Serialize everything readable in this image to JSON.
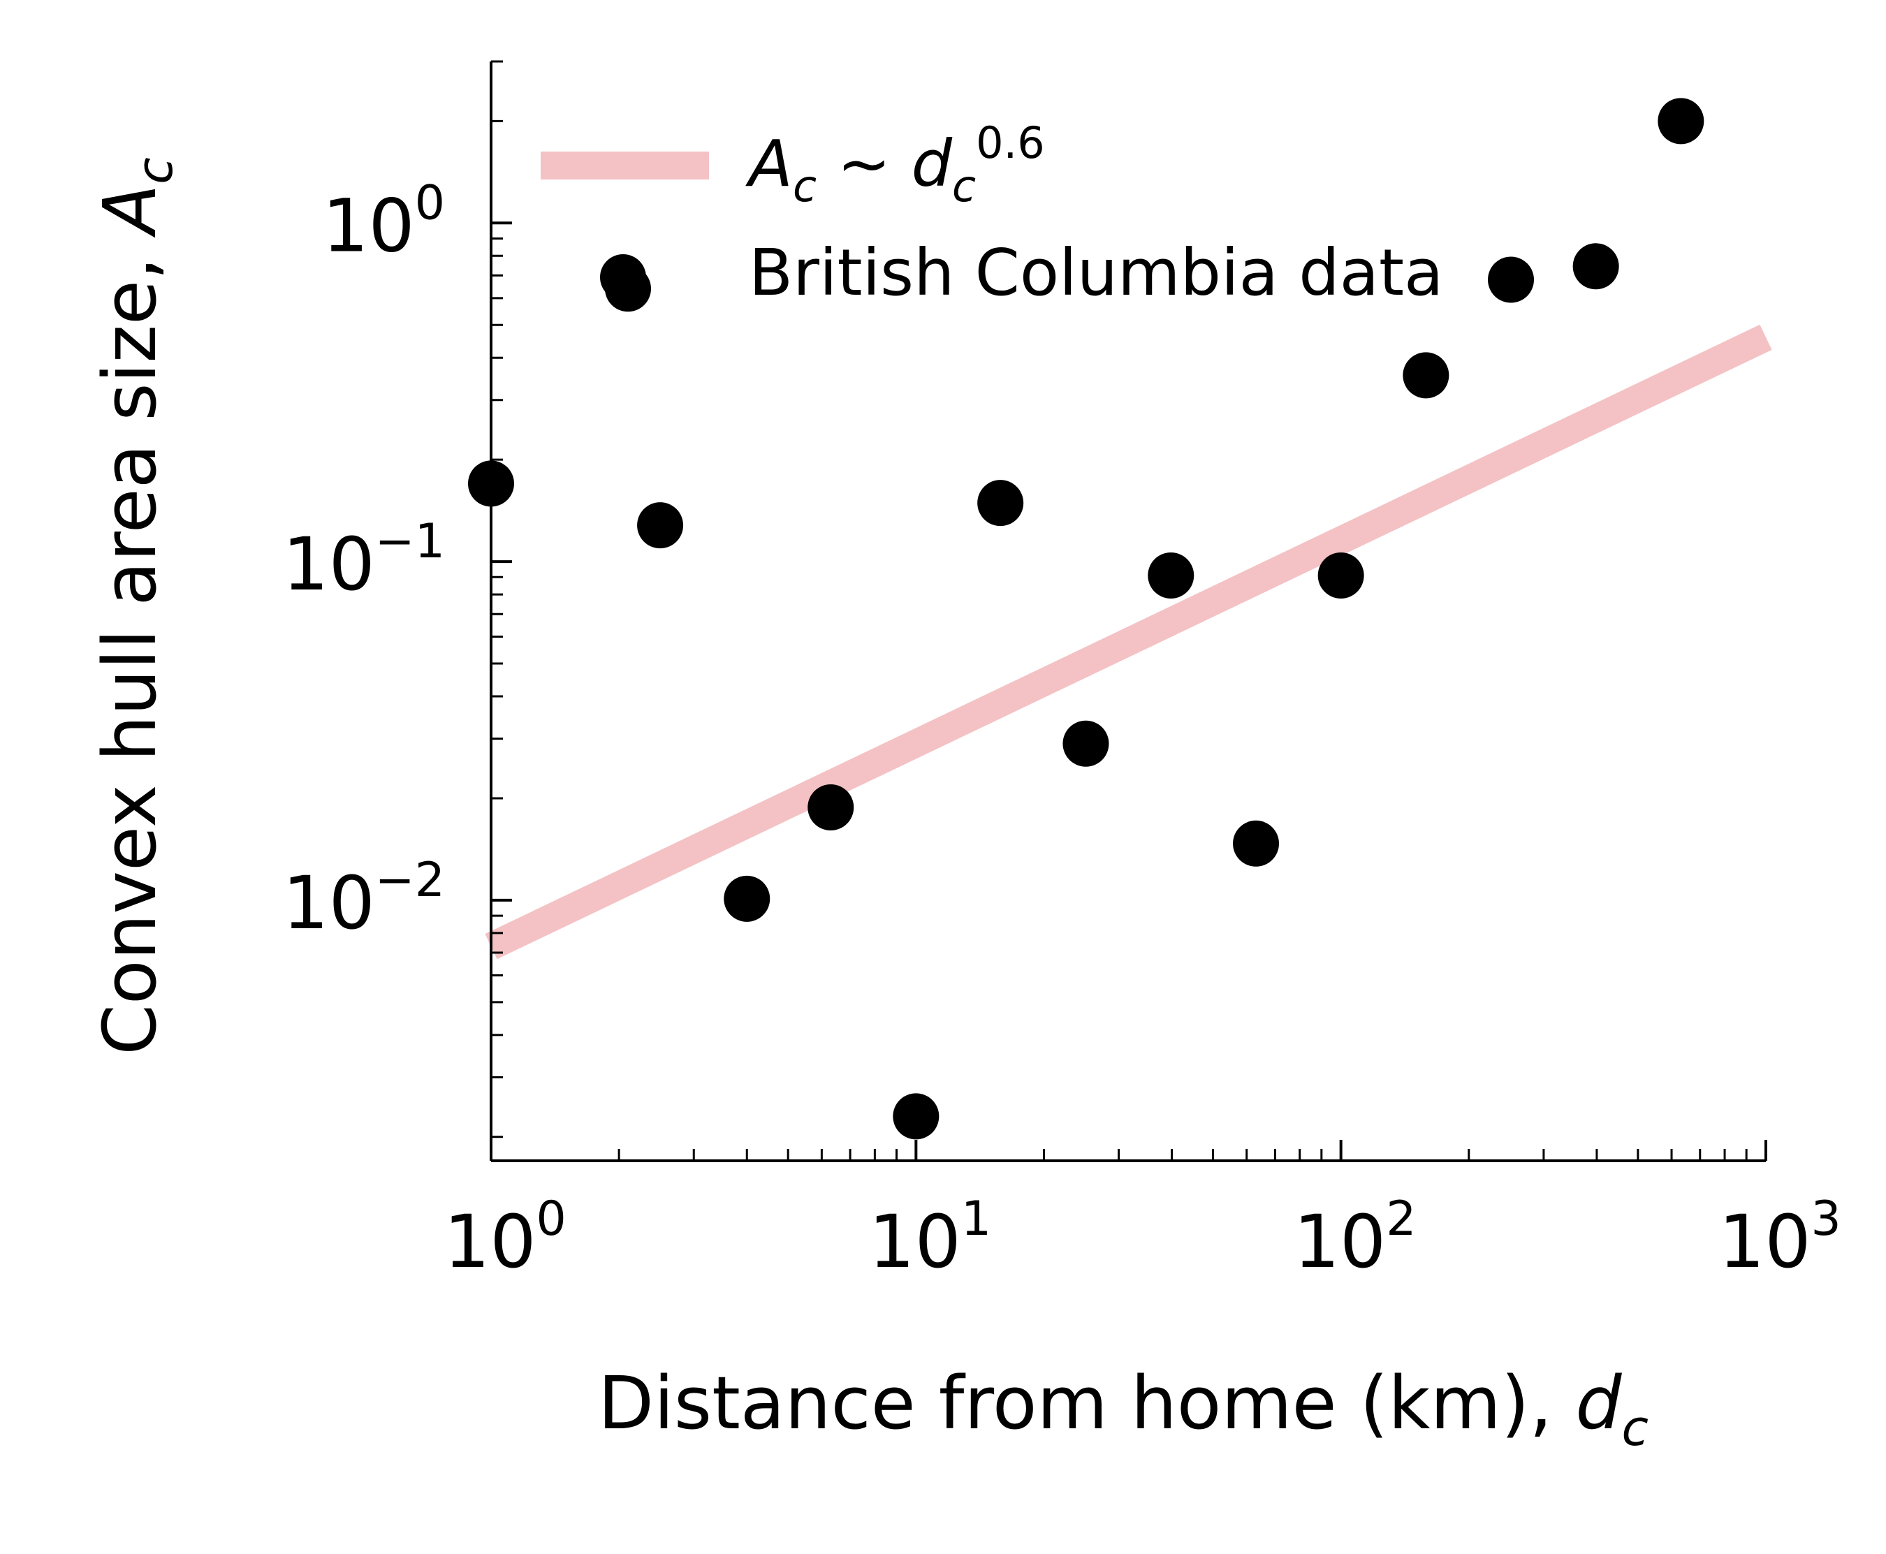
{
  "chart_data": {
    "type": "scatter",
    "xscale": "log",
    "yscale": "log",
    "xlim": [
      1,
      1000
    ],
    "ylim": [
      0.0017,
      3.0
    ],
    "xlabel": "Distance from home (km), ",
    "xlabel_var": "d",
    "xlabel_sub": "c",
    "ylabel": "Convex hull area size, ",
    "ylabel_var": "A",
    "ylabel_sub": "c",
    "x_ticks": [
      {
        "value": 1,
        "base": "10",
        "exp": "0"
      },
      {
        "value": 10,
        "base": "10",
        "exp": "1"
      },
      {
        "value": 100,
        "base": "10",
        "exp": "2"
      },
      {
        "value": 1000,
        "base": "10",
        "exp": "3"
      }
    ],
    "y_ticks": [
      {
        "value": 0.01,
        "base": "10",
        "exp": "−2"
      },
      {
        "value": 0.1,
        "base": "10",
        "exp": "−1"
      },
      {
        "value": 1,
        "base": "10",
        "exp": "0"
      }
    ],
    "series": [
      {
        "name": "British Columbia data",
        "kind": "scatter",
        "color": "#000000",
        "x": [
          1.0,
          2.1,
          2.5,
          4.0,
          6.3,
          10.0,
          15.8,
          25.1,
          39.8,
          63.1,
          100.0,
          158.5,
          251.2,
          398.1,
          631.0
        ],
        "y": [
          0.17,
          0.64,
          0.128,
          0.0101,
          0.0188,
          0.0023,
          0.149,
          0.029,
          0.091,
          0.0147,
          0.091,
          0.355,
          0.68,
          0.745,
          2.0
        ]
      },
      {
        "name": "fit",
        "kind": "line",
        "color": "#f4c2c4",
        "exponent": 0.6,
        "x": [
          1,
          1000
        ],
        "y": [
          0.0073,
          0.46
        ]
      }
    ],
    "legend": {
      "placement": "top-left",
      "fit_label": {
        "A": "A",
        "A_sub": "c",
        "sim": " ~ ",
        "d": "d",
        "d_sub": "c",
        "exp": "0.6"
      },
      "data_label": "British Columbia data"
    }
  }
}
